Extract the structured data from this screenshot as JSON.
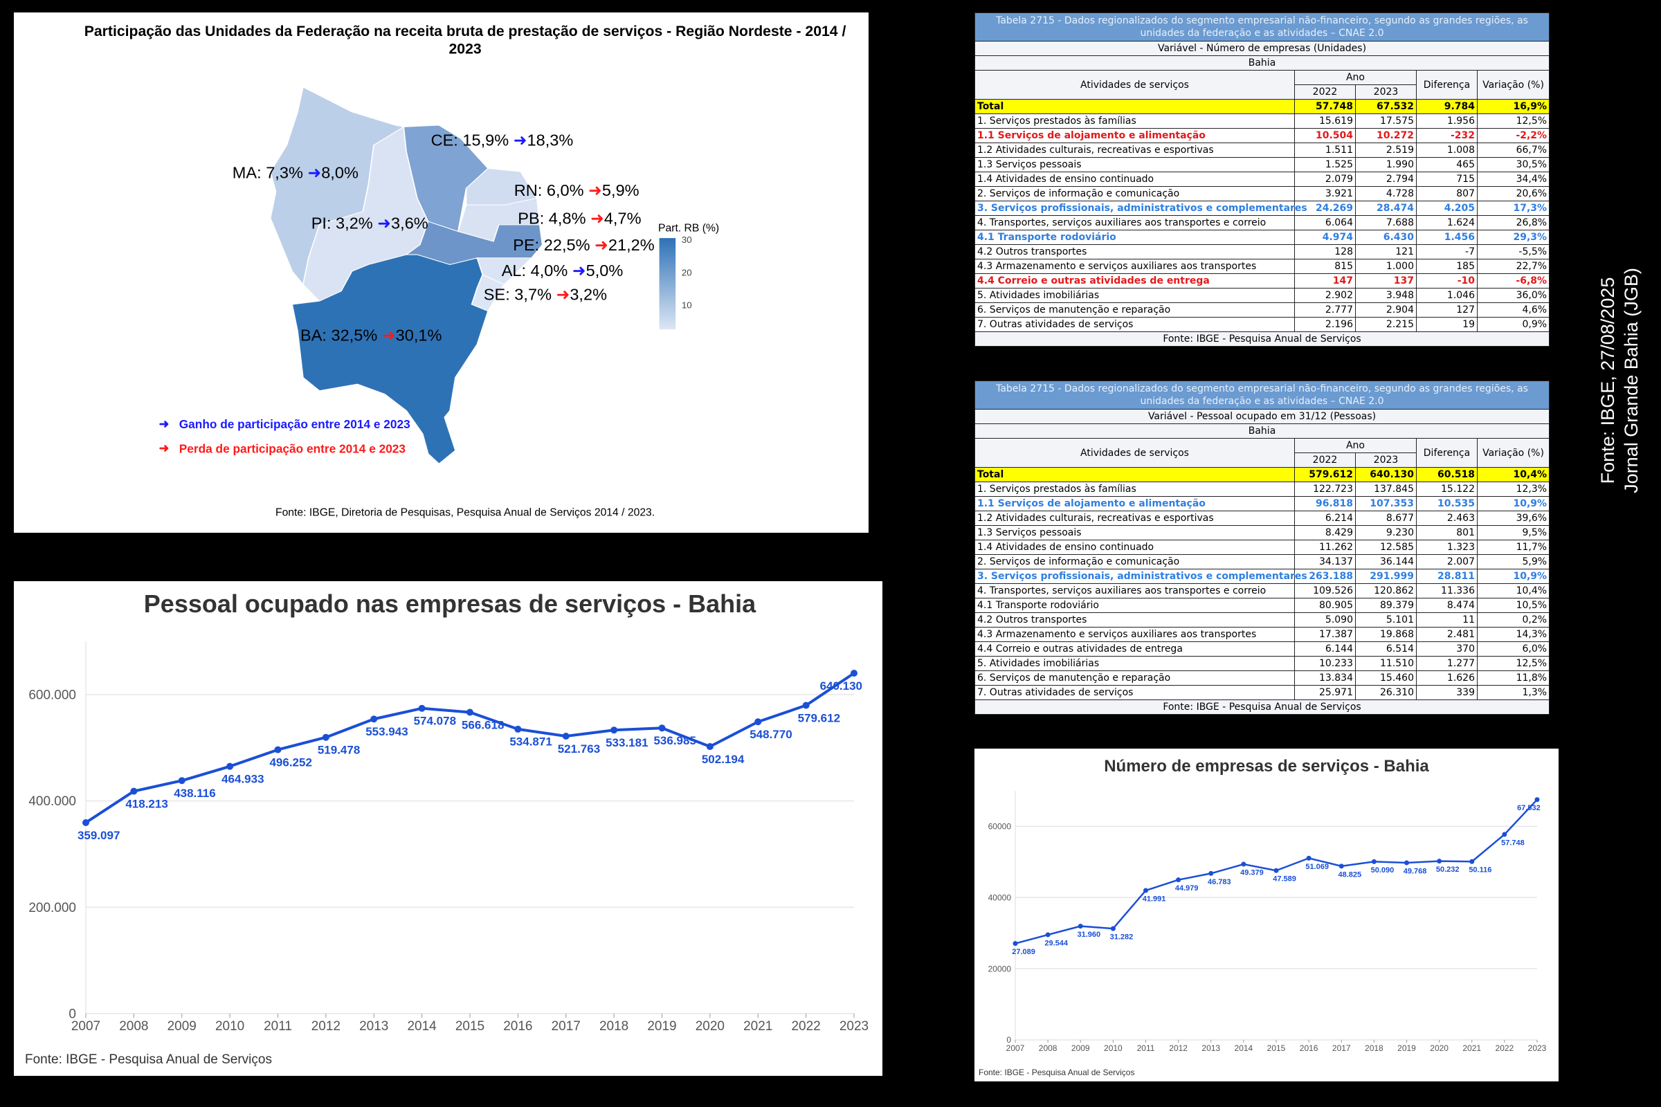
{
  "map": {
    "title_line1": "Participação das Unidades da Federação na receita bruta de prestação de serviços - Região Nordeste - 2014 /",
    "title_line2": "2023",
    "arrow": "➜",
    "states": [
      {
        "code": "MA",
        "from": "MA: 7,3%",
        "to": "8,0%",
        "trend": "gain",
        "fill": "#bccfe9"
      },
      {
        "code": "PI",
        "from": "PI: 3,2%",
        "to": "3,6%",
        "trend": "gain",
        "fill": "#dae3f3"
      },
      {
        "code": "CE",
        "from": "CE: 15,9%",
        "to": "18,3%",
        "trend": "gain",
        "fill": "#7fa3d2"
      },
      {
        "code": "RN",
        "from": "RN: 6,0%",
        "to": "5,9%",
        "trend": "loss",
        "fill": "#d0dcf0"
      },
      {
        "code": "PB",
        "from": "PB: 4,8%",
        "to": "4,7%",
        "trend": "loss",
        "fill": "#d8e2f3"
      },
      {
        "code": "PE",
        "from": "PE: 22,5%",
        "to": "21,2%",
        "trend": "loss",
        "fill": "#6e95c9"
      },
      {
        "code": "AL",
        "from": "AL: 4,0%",
        "to": "5,0%",
        "trend": "gain",
        "fill": "#dbe4f4"
      },
      {
        "code": "SE",
        "from": "SE: 3,7%",
        "to": "3,2%",
        "trend": "loss",
        "fill": "#dde6f5"
      },
      {
        "code": "BA",
        "from": "BA: 32,5%",
        "to": "30,1%",
        "trend": "loss",
        "fill": "#2e72b6"
      }
    ],
    "colorbar": {
      "title": "Part. RB (%)",
      "ticks": [
        "30",
        "20",
        "10"
      ],
      "min_color": "#dde6f5",
      "max_color": "#2e72b6"
    },
    "legend": {
      "gain": "Ganho de participação entre 2014 e 2023",
      "loss": "Perda de participação entre 2014 e 2023",
      "gain_color": "#1a1aff",
      "loss_color": "#ff1a1a"
    },
    "source": "Fonte: IBGE, Diretoria de Pesquisas, Pesquisa Anual de Serviços 2014 / 2023."
  },
  "chart_data": [
    {
      "type": "line",
      "title": "Pessoal ocupado nas empresas de serviços - Bahia",
      "x": [
        "2007",
        "2008",
        "2009",
        "2010",
        "2011",
        "2012",
        "2013",
        "2014",
        "2015",
        "2016",
        "2017",
        "2018",
        "2019",
        "2020",
        "2021",
        "2022",
        "2023"
      ],
      "values": [
        359097,
        418213,
        438116,
        464933,
        496252,
        519478,
        553943,
        574078,
        566618,
        534871,
        521763,
        533181,
        536985,
        502194,
        548770,
        579612,
        640130
      ],
      "labels": [
        "359.097",
        "418.213",
        "438.116",
        "464.933",
        "496.252",
        "519.478",
        "553.943",
        "574.078",
        "566.618",
        "534.871",
        "521.763",
        "533.181",
        "536.985",
        "502.194",
        "548.770",
        "579.612",
        "640.130"
      ],
      "ylim": [
        0,
        700000
      ],
      "yticks": [
        0,
        200000,
        400000,
        600000
      ],
      "ytick_labels": [
        "0",
        "200.000",
        "400.000",
        "600.000"
      ],
      "grid": true,
      "color": "#1a4fd6",
      "source": "Fonte: IBGE - Pesquisa Anual de Serviços"
    },
    {
      "type": "line",
      "title": "Número de empresas de serviços - Bahia",
      "x": [
        "2007",
        "2008",
        "2009",
        "2010",
        "2011",
        "2012",
        "2013",
        "2014",
        "2015",
        "2016",
        "2017",
        "2018",
        "2019",
        "2020",
        "2021",
        "2022",
        "2023"
      ],
      "values": [
        27089,
        29544,
        31960,
        31282,
        41991,
        44979,
        46783,
        49379,
        47589,
        51069,
        48825,
        50090,
        49768,
        50232,
        50116,
        57748,
        67532
      ],
      "labels": [
        "27.089",
        "29.544",
        "31.960",
        "31.282",
        "41.991",
        "44.979",
        "46.783",
        "49.379",
        "47.589",
        "51.069",
        "48.825",
        "50.090",
        "49.768",
        "50.232",
        "50.116",
        "57.748",
        "67.532"
      ],
      "ylim": [
        0,
        70000
      ],
      "yticks": [
        0,
        20000,
        40000,
        60000
      ],
      "ytick_labels": [
        "0",
        "20000",
        "40000",
        "60000"
      ],
      "grid": true,
      "color": "#1a4fd6",
      "source": "Fonte: IBGE - Pesquisa Anual de Serviços"
    }
  ],
  "tables": [
    {
      "title": "Tabela 2715 - Dados regionalizados do segmento empresarial não-financeiro, segundo as grandes regiões, as unidades da federação e as atividades – CNAE 2.0",
      "variable": "Variável - Número de empresas (Unidades)",
      "region": "Bahia",
      "headers": {
        "activity": "Atividades de serviços",
        "year": "Ano",
        "y1": "2022",
        "y2": "2023",
        "diff": "Diferença",
        "var": "Variação (%)"
      },
      "rows": [
        {
          "style": "total",
          "cells": [
            "Total",
            "57.748",
            "67.532",
            "9.784",
            "16,9%"
          ]
        },
        {
          "style": "",
          "cells": [
            "1. Serviços prestados às famílias",
            "15.619",
            "17.575",
            "1.956",
            "12,5%"
          ]
        },
        {
          "style": "red",
          "cells": [
            "1.1 Serviços de alojamento e alimentação",
            "10.504",
            "10.272",
            "-232",
            "-2,2%"
          ]
        },
        {
          "style": "",
          "cells": [
            "1.2 Atividades culturais, recreativas e esportivas",
            "1.511",
            "2.519",
            "1.008",
            "66,7%"
          ]
        },
        {
          "style": "",
          "cells": [
            "1.3 Serviços pessoais",
            "1.525",
            "1.990",
            "465",
            "30,5%"
          ]
        },
        {
          "style": "",
          "cells": [
            "1.4 Atividades de ensino continuado",
            "2.079",
            "2.794",
            "715",
            "34,4%"
          ]
        },
        {
          "style": "",
          "cells": [
            "2. Serviços de informação e comunicação",
            "3.921",
            "4.728",
            "807",
            "20,6%"
          ]
        },
        {
          "style": "blue",
          "cells": [
            "3. Serviços profissionais, administrativos e complementares",
            "24.269",
            "28.474",
            "4.205",
            "17,3%"
          ]
        },
        {
          "style": "",
          "cells": [
            "4. Transportes, serviços auxiliares aos transportes e correio",
            "6.064",
            "7.688",
            "1.624",
            "26,8%"
          ]
        },
        {
          "style": "blue",
          "cells": [
            "4.1 Transporte rodoviário",
            "4.974",
            "6.430",
            "1.456",
            "29,3%"
          ]
        },
        {
          "style": "",
          "cells": [
            "4.2 Outros transportes",
            "128",
            "121",
            "-7",
            "-5,5%"
          ]
        },
        {
          "style": "",
          "cells": [
            "4.3 Armazenamento e serviços auxiliares aos transportes",
            "815",
            "1.000",
            "185",
            "22,7%"
          ]
        },
        {
          "style": "red",
          "cells": [
            "4.4 Correio e outras atividades de entrega",
            "147",
            "137",
            "-10",
            "-6,8%"
          ]
        },
        {
          "style": "",
          "cells": [
            "5. Atividades imobiliárias",
            "2.902",
            "3.948",
            "1.046",
            "36,0%"
          ]
        },
        {
          "style": "",
          "cells": [
            "6. Serviços de manutenção e reparação",
            "2.777",
            "2.904",
            "127",
            "4,6%"
          ]
        },
        {
          "style": "",
          "cells": [
            "7. Outras atividades de serviços",
            "2.196",
            "2.215",
            "19",
            "0,9%"
          ]
        }
      ],
      "source": "Fonte: IBGE - Pesquisa Anual de Serviços"
    },
    {
      "title": "Tabela 2715 - Dados regionalizados do segmento empresarial não-financeiro, segundo as grandes regiões, as unidades da federação e as atividades – CNAE 2.0",
      "variable": "Variável - Pessoal ocupado em 31/12 (Pessoas)",
      "region": "Bahia",
      "headers": {
        "activity": "Atividades de serviços",
        "year": "Ano",
        "y1": "2022",
        "y2": "2023",
        "diff": "Diferença",
        "var": "Variação (%)"
      },
      "rows": [
        {
          "style": "total",
          "cells": [
            "Total",
            "579.612",
            "640.130",
            "60.518",
            "10,4%"
          ]
        },
        {
          "style": "",
          "cells": [
            "1. Serviços prestados às famílias",
            "122.723",
            "137.845",
            "15.122",
            "12,3%"
          ]
        },
        {
          "style": "blue",
          "cells": [
            "1.1 Serviços de alojamento e alimentação",
            "96.818",
            "107.353",
            "10.535",
            "10,9%"
          ]
        },
        {
          "style": "",
          "cells": [
            "1.2 Atividades culturais, recreativas e esportivas",
            "6.214",
            "8.677",
            "2.463",
            "39,6%"
          ]
        },
        {
          "style": "",
          "cells": [
            "1.3 Serviços pessoais",
            "8.429",
            "9.230",
            "801",
            "9,5%"
          ]
        },
        {
          "style": "",
          "cells": [
            "1.4 Atividades de ensino continuado",
            "11.262",
            "12.585",
            "1.323",
            "11,7%"
          ]
        },
        {
          "style": "",
          "cells": [
            "2. Serviços de informação e comunicação",
            "34.137",
            "36.144",
            "2.007",
            "5,9%"
          ]
        },
        {
          "style": "blue",
          "cells": [
            "3. Serviços profissionais, administrativos e complementares",
            "263.188",
            "291.999",
            "28.811",
            "10,9%"
          ]
        },
        {
          "style": "",
          "cells": [
            "4. Transportes, serviços auxiliares aos transportes e correio",
            "109.526",
            "120.862",
            "11.336",
            "10,4%"
          ]
        },
        {
          "style": "",
          "cells": [
            "4.1 Transporte rodoviário",
            "80.905",
            "89.379",
            "8.474",
            "10,5%"
          ]
        },
        {
          "style": "",
          "cells": [
            "4.2 Outros transportes",
            "5.090",
            "5.101",
            "11",
            "0,2%"
          ]
        },
        {
          "style": "",
          "cells": [
            "4.3 Armazenamento e serviços auxiliares aos transportes",
            "17.387",
            "19.868",
            "2.481",
            "14,3%"
          ]
        },
        {
          "style": "",
          "cells": [
            "4.4 Correio e outras atividades de entrega",
            "6.144",
            "6.514",
            "370",
            "6,0%"
          ]
        },
        {
          "style": "",
          "cells": [
            "5. Atividades imobiliárias",
            "10.233",
            "11.510",
            "1.277",
            "12,5%"
          ]
        },
        {
          "style": "",
          "cells": [
            "6. Serviços de manutenção e reparação",
            "13.834",
            "15.460",
            "1.626",
            "11,8%"
          ]
        },
        {
          "style": "",
          "cells": [
            "7. Outras atividades de serviços",
            "25.971",
            "26.310",
            "339",
            "1,3%"
          ]
        }
      ],
      "source": "Fonte: IBGE - Pesquisa Anual de Serviços"
    }
  ],
  "credit": {
    "line1": "Fonte: IBGE, 27/08/2025",
    "line2": "Jornal Grande Bahia (JGB)"
  }
}
